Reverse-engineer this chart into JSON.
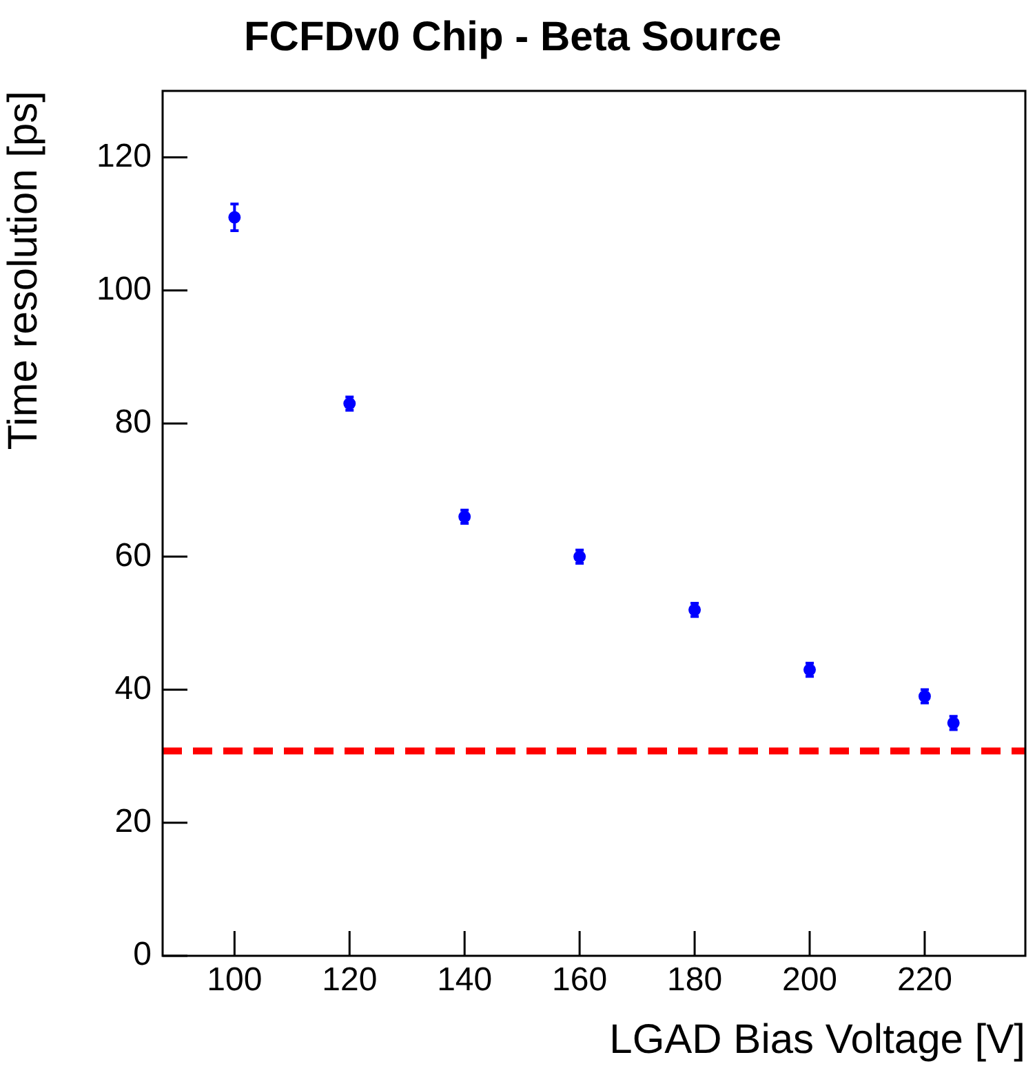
{
  "chart_data": {
    "type": "scatter",
    "title": "FCFDv0 Chip - Beta Source",
    "xlabel": "LGAD Bias Voltage [V]",
    "ylabel": "Time resolution [ps]",
    "x": [
      100,
      120,
      140,
      160,
      180,
      200,
      220,
      225
    ],
    "series": [
      {
        "color": "#0000ff",
        "values": [
          111,
          83,
          66,
          60,
          52,
          43,
          39,
          35
        ],
        "errors": [
          2,
          1,
          1,
          1,
          1,
          1,
          1,
          1
        ]
      }
    ],
    "marker": "circle",
    "grid": false,
    "legend": false,
    "xlim": [
      87.5,
      237.5
    ],
    "xticks": [
      100,
      120,
      140,
      160,
      180,
      200,
      220
    ],
    "ylim": [
      0,
      130
    ],
    "yticks": [
      0,
      20,
      40,
      60,
      80,
      100,
      120
    ],
    "ref_lines": [
      {
        "axis": "y",
        "value": 30.8,
        "color": "#ff0000",
        "line_style": "dashed"
      }
    ]
  }
}
